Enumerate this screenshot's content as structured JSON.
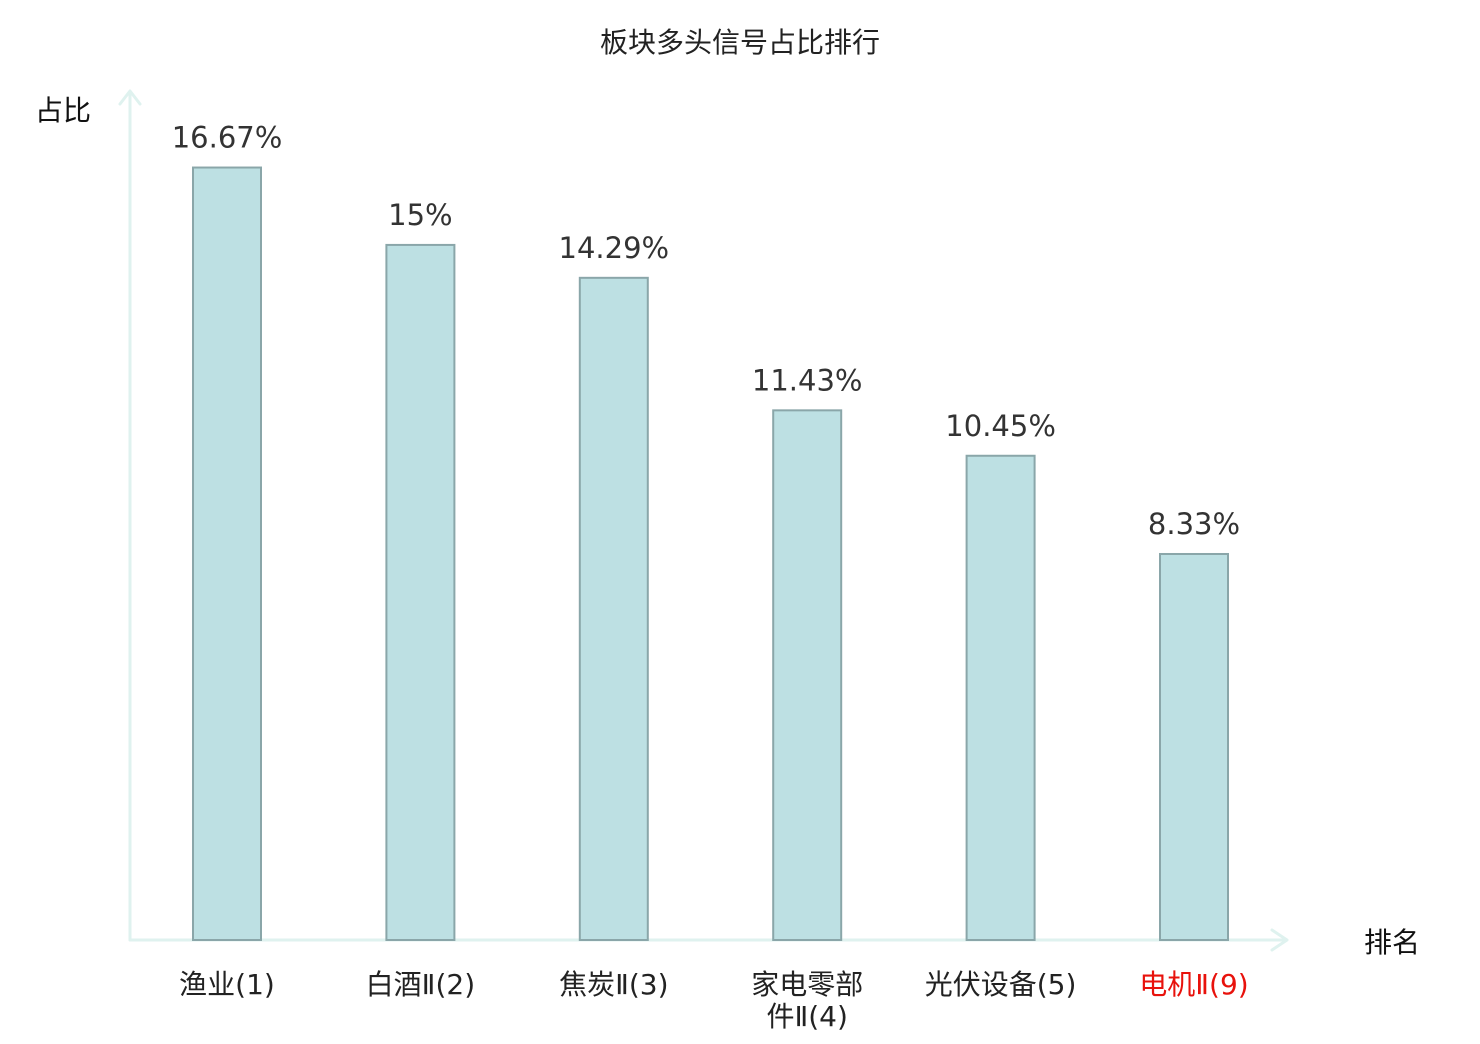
{
  "chart_data": {
    "type": "bar",
    "title": "板块多头信号占比排行",
    "ylabel": "占比",
    "xlabel": "排名",
    "ylim": [
      0,
      18.3
    ],
    "grid": false,
    "legend": "none",
    "categories": [
      [
        "渔业(1)"
      ],
      [
        "白酒Ⅱ(2)"
      ],
      [
        "焦炭Ⅱ(3)"
      ],
      [
        "家电零部",
        "件Ⅱ(4)"
      ],
      [
        "光伏设备(5)"
      ],
      [
        "电机Ⅱ(9)"
      ]
    ],
    "values": [
      16.67,
      15,
      14.29,
      11.43,
      10.45,
      8.33
    ],
    "value_labels": [
      "16.67%",
      "15%",
      "14.29%",
      "11.43%",
      "10.45%",
      "8.33%"
    ],
    "highlight_index": 5
  },
  "colors": {
    "bar_fill": "#bde0e3",
    "bar_stroke": "#8aa6a9",
    "axis": "#dff2ef",
    "label": "#222222",
    "value": "#333333",
    "highlight": "#e8120c"
  }
}
